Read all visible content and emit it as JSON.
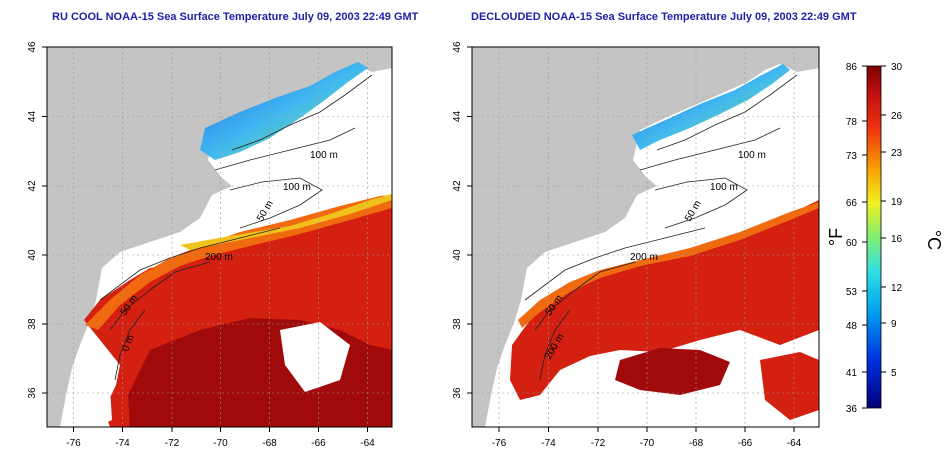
{
  "panels": [
    {
      "title": "RU COOL NOAA-15 Sea Surface Temperature July 09, 2003 22:49 GMT",
      "contour_labels": [
        "100 m",
        "100 m",
        "50 m",
        "200 m",
        "50 m",
        "0 m"
      ]
    },
    {
      "title": "DECLOUDED NOAA-15 Sea Surface Temperature July 09, 2003 22:49 GMT",
      "contour_labels": [
        "100 m",
        "100 m",
        "50 m",
        "200 m",
        "50 m",
        "200 m"
      ]
    }
  ],
  "axes": {
    "lon_ticks": [
      "-76",
      "-74",
      "-72",
      "-70",
      "-68",
      "-66",
      "-64"
    ],
    "lat_ticks": [
      "46",
      "44",
      "42",
      "40",
      "38",
      "36"
    ]
  },
  "colorbar": {
    "f_ticks": [
      "86",
      "78",
      "73",
      "66",
      "60",
      "53",
      "48",
      "41",
      "36"
    ],
    "c_ticks": [
      "30",
      "26",
      "23",
      "19",
      "16",
      "12",
      "9",
      "5"
    ],
    "f_label": "°F",
    "c_label": "°C"
  },
  "colors": {
    "land": "#c4c4c4",
    "title": "#1f1fa8",
    "warm": "#cc1a0f",
    "hot": "#9a0808",
    "cool": "#35a7e6",
    "cold": "#1d4fd6"
  }
}
